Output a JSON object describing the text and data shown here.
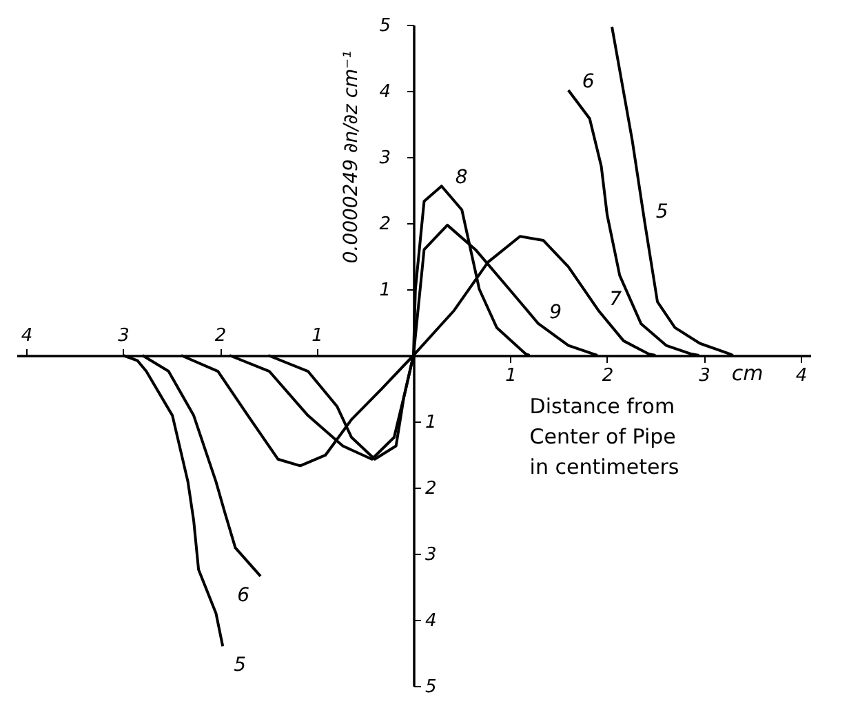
{
  "chart_data": {
    "type": "line",
    "xlabel": "Distance from Center of Pipe in centimeters",
    "ylabel": "0.0000249 ∂n/∂z cm⁻¹",
    "annotations": [
      "cm"
    ],
    "xlim": [
      -4.1,
      4.1
    ],
    "ylim": [
      -5,
      5
    ],
    "xticks": [
      1,
      2,
      3,
      4
    ],
    "x2lim": [
      -4.1,
      4.1
    ],
    "x2ticks": [
      {
        "value": -4,
        "label": "4"
      },
      {
        "value": -3,
        "label": "3"
      },
      {
        "value": -2,
        "label": "2"
      },
      {
        "value": -1,
        "label": "1"
      }
    ],
    "yticks": [
      1,
      2,
      3,
      4,
      5
    ],
    "y2lim": [
      -5,
      5
    ],
    "y2ticks": [
      {
        "value": -5,
        "label": "5"
      },
      {
        "value": -4,
        "label": "4"
      },
      {
        "value": -3,
        "label": "3"
      },
      {
        "value": -2,
        "label": "2"
      },
      {
        "value": -1,
        "label": "1"
      }
    ],
    "grid": false,
    "legend": false,
    "marker": "none",
    "line_style": "solid",
    "series": [
      {
        "name": "5",
        "color": "#000000",
        "x": [
          -3.0,
          -2.85,
          -2.76,
          -2.49,
          -2.33,
          -2.27,
          -2.22,
          -2.04,
          -1.97,
          null,
          2.05,
          2.26,
          2.39,
          2.52,
          2.7,
          2.96,
          3.27,
          3.3
        ],
        "values": [
          0,
          -0.08,
          -0.24,
          -0.91,
          -1.91,
          -2.5,
          -3.24,
          -3.9,
          -4.4,
          null,
          4.97,
          3.25,
          2.0,
          0.81,
          0.42,
          0.18,
          0.02,
          0
        ]
      },
      {
        "name": "6",
        "color": "#000000",
        "x": [
          -2.8,
          -2.53,
          -2.27,
          -2.04,
          -1.95,
          -1.84,
          -1.58,
          null,
          1.6,
          1.82,
          1.94,
          2.0,
          2.13,
          2.35,
          2.61,
          2.87,
          2.95
        ],
        "values": [
          0,
          -0.24,
          -0.91,
          -1.91,
          -2.37,
          -2.91,
          -3.34,
          null,
          4.01,
          3.58,
          2.86,
          2.13,
          1.21,
          0.48,
          0.15,
          0.02,
          0
        ]
      },
      {
        "name": "7",
        "color": "#000000",
        "x": [
          -2.4,
          -2.02,
          -1.71,
          -1.4,
          -1.17,
          -0.91,
          -0.64,
          -0.33,
          0,
          0.42,
          0.77,
          1.1,
          1.34,
          1.6,
          1.91,
          2.17,
          2.43,
          2.5
        ],
        "values": [
          0,
          -0.24,
          -0.91,
          -1.57,
          -1.67,
          -1.51,
          -0.97,
          -0.51,
          0,
          0.68,
          1.41,
          1.8,
          1.74,
          1.34,
          0.68,
          0.22,
          0.02,
          0
        ]
      },
      {
        "name": "8",
        "color": "#000000",
        "x": [
          -1.9,
          -1.49,
          -1.09,
          -0.73,
          -0.43,
          -0.2,
          -0.09,
          0,
          0.02,
          0.11,
          0.29,
          0.5,
          0.68,
          0.86,
          1.16,
          1.2
        ],
        "values": [
          0,
          -0.24,
          -0.91,
          -1.37,
          -1.57,
          -1.24,
          -0.57,
          0,
          1.0,
          2.33,
          2.56,
          2.2,
          1.0,
          0.42,
          0.02,
          0
        ]
      },
      {
        "name": "9",
        "color": "#000000",
        "x": [
          -1.5,
          -1.09,
          -0.79,
          -0.64,
          -0.4,
          -0.18,
          -0.1,
          0,
          0.11,
          0.35,
          0.64,
          0.99,
          1.29,
          1.6,
          1.86,
          1.9
        ],
        "values": [
          0,
          -0.24,
          -0.77,
          -1.24,
          -1.57,
          -1.37,
          -0.64,
          0,
          1.6,
          1.97,
          1.6,
          1.0,
          0.48,
          0.15,
          0.02,
          0
        ]
      }
    ]
  }
}
